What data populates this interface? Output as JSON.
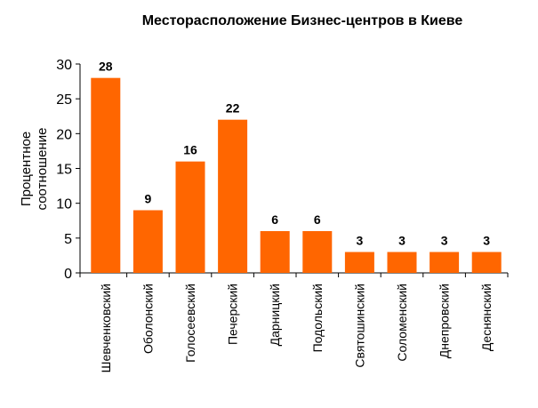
{
  "chart_data": {
    "type": "bar",
    "title": "Месторасположение Бизнес-центров в Киеве",
    "xlabel": "",
    "ylabel": [
      "Процентное",
      "соотношение"
    ],
    "ylim": [
      0,
      30
    ],
    "yticks": [
      0,
      5,
      10,
      15,
      20,
      25,
      30
    ],
    "grid": false,
    "categories": [
      "Шевченковский",
      "Оболонский",
      "Голосеевский",
      "Печерский",
      "Дарницкий",
      "Подольский",
      "Святошинский",
      "Соломенский",
      "Днепровский",
      "Деснянский"
    ],
    "values": [
      28,
      9,
      16,
      22,
      6,
      6,
      3,
      3,
      3,
      3
    ],
    "bar_color": "#FF6600"
  }
}
